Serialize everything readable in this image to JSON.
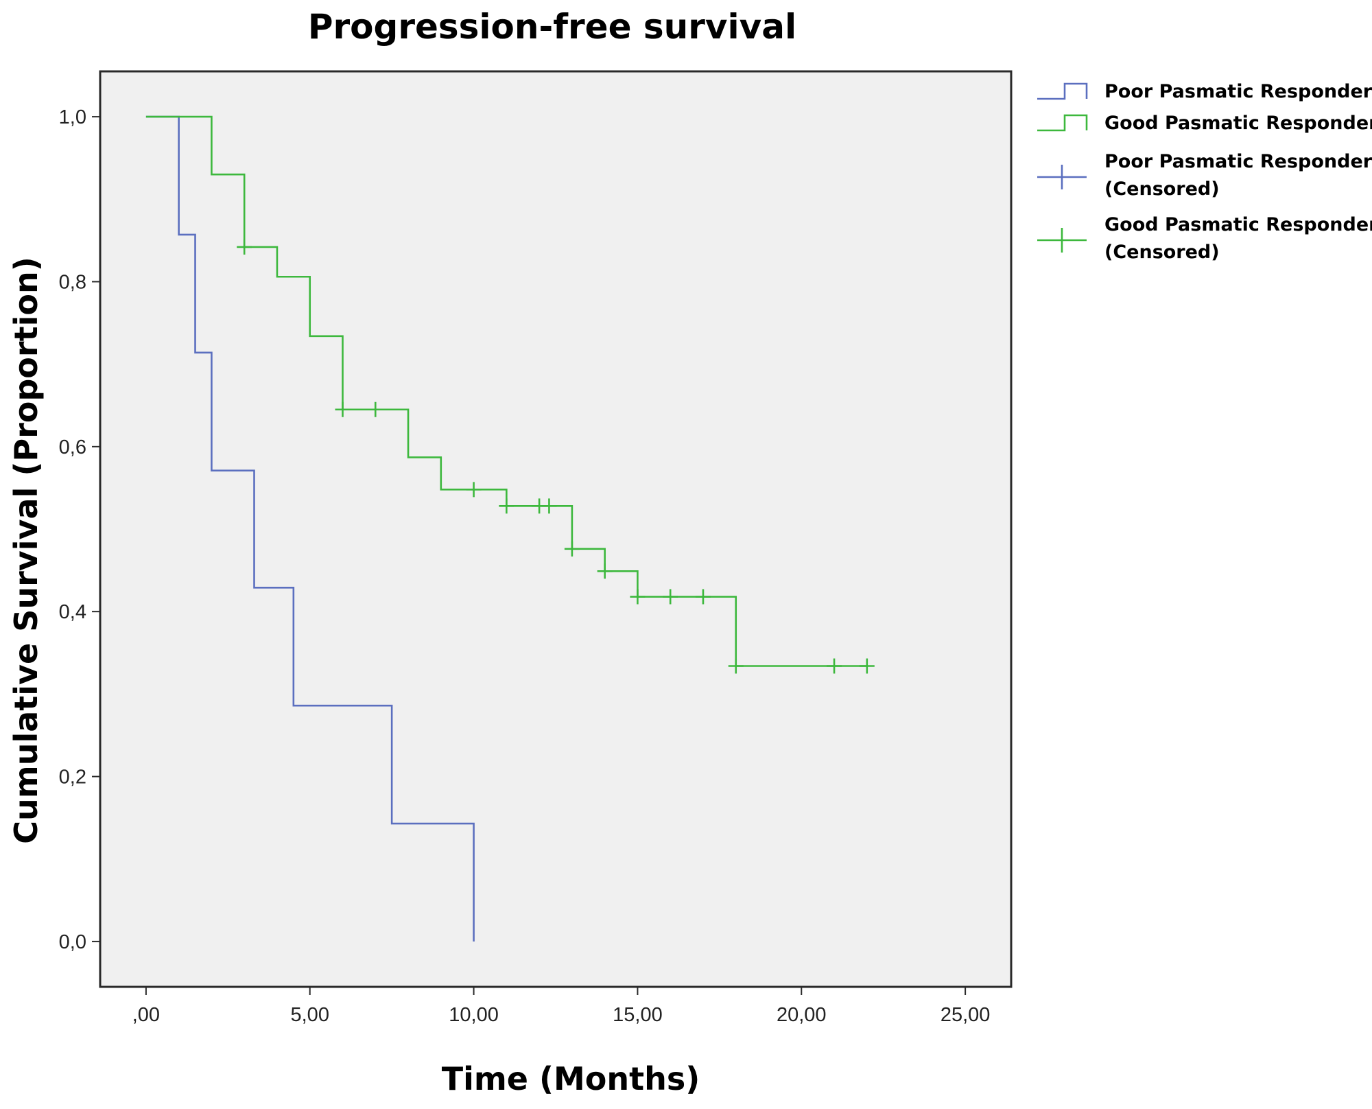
{
  "chart_data": {
    "type": "line",
    "subtype": "kaplan-meier-step",
    "title": "Progression-free survival",
    "xlabel": "Time (Months)",
    "ylabel": "Cumulative  Survival (Proportion)",
    "xlim": [
      -1.4,
      26.4
    ],
    "ylim": [
      -0.055,
      1.055
    ],
    "x_ticks": [
      {
        "value": 0,
        "label": ",00"
      },
      {
        "value": 5,
        "label": "5,00"
      },
      {
        "value": 10,
        "label": "10,00"
      },
      {
        "value": 15,
        "label": "15,00"
      },
      {
        "value": 20,
        "label": "20,00"
      },
      {
        "value": 25,
        "label": "25,00"
      }
    ],
    "y_ticks": [
      {
        "value": 0.0,
        "label": "0,0"
      },
      {
        "value": 0.2,
        "label": "0,2"
      },
      {
        "value": 0.4,
        "label": "0,4"
      },
      {
        "value": 0.6,
        "label": "0,6"
      },
      {
        "value": 0.8,
        "label": "0,8"
      },
      {
        "value": 1.0,
        "label": "1,0"
      }
    ],
    "grid": false,
    "plot_background": "#f0f0f0",
    "legend_position": "right",
    "series": [
      {
        "name": "Poor Pasmatic Responder",
        "color": "#5b6fbf",
        "steps": [
          {
            "x": 0,
            "y": 1.0
          },
          {
            "x": 1.0,
            "y": 0.857
          },
          {
            "x": 1.5,
            "y": 0.714
          },
          {
            "x": 2.0,
            "y": 0.571
          },
          {
            "x": 3.3,
            "y": 0.429
          },
          {
            "x": 4.5,
            "y": 0.286
          },
          {
            "x": 7.5,
            "y": 0.143
          },
          {
            "x": 10.0,
            "y": 0.0
          }
        ],
        "censored": []
      },
      {
        "name": "Good Pasmatic Responder",
        "color": "#3db83d",
        "steps": [
          {
            "x": 0,
            "y": 1.0
          },
          {
            "x": 2.0,
            "y": 0.93
          },
          {
            "x": 3.0,
            "y": 0.842
          },
          {
            "x": 4.0,
            "y": 0.806
          },
          {
            "x": 5.0,
            "y": 0.734
          },
          {
            "x": 6.0,
            "y": 0.645
          },
          {
            "x": 8.0,
            "y": 0.587
          },
          {
            "x": 9.0,
            "y": 0.548
          },
          {
            "x": 11.0,
            "y": 0.528
          },
          {
            "x": 13.0,
            "y": 0.476
          },
          {
            "x": 14.0,
            "y": 0.449
          },
          {
            "x": 15.0,
            "y": 0.418
          },
          {
            "x": 18.0,
            "y": 0.334
          }
        ],
        "end_x": 22.0,
        "censored": [
          {
            "x": 3.0,
            "y": 0.842
          },
          {
            "x": 6.0,
            "y": 0.645
          },
          {
            "x": 7.0,
            "y": 0.645
          },
          {
            "x": 10.0,
            "y": 0.548
          },
          {
            "x": 11.0,
            "y": 0.528
          },
          {
            "x": 12.0,
            "y": 0.528
          },
          {
            "x": 12.3,
            "y": 0.528
          },
          {
            "x": 13.0,
            "y": 0.476
          },
          {
            "x": 14.0,
            "y": 0.449
          },
          {
            "x": 15.0,
            "y": 0.418
          },
          {
            "x": 16.0,
            "y": 0.418
          },
          {
            "x": 17.0,
            "y": 0.418
          },
          {
            "x": 18.0,
            "y": 0.334
          },
          {
            "x": 21.0,
            "y": 0.334
          },
          {
            "x": 22.0,
            "y": 0.334
          }
        ]
      }
    ],
    "legend": [
      {
        "label": "Poor Pasmatic Responder",
        "line2": "",
        "symbol": "step",
        "color": "#5b6fbf"
      },
      {
        "label": "Good Pasmatic Responder",
        "line2": "",
        "symbol": "step",
        "color": "#3db83d"
      },
      {
        "label": "Poor Pasmatic Responder",
        "line2": "(Censored)",
        "symbol": "plus",
        "color": "#5b6fbf"
      },
      {
        "label": "Good Pasmatic Responder",
        "line2": "(Censored)",
        "symbol": "plus",
        "color": "#3db83d"
      }
    ]
  }
}
